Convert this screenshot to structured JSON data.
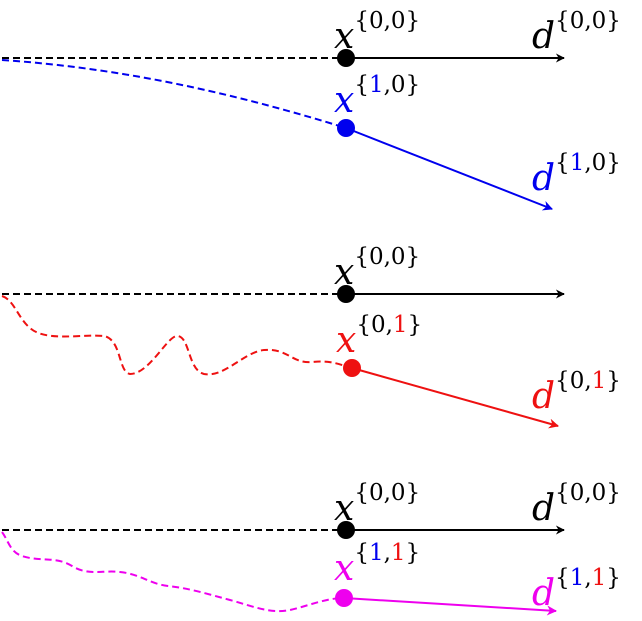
{
  "colors": {
    "black": "#000000",
    "blue": "#0000ee",
    "red": "#ee1111",
    "magenta": "#ee00ee"
  },
  "panels": [
    {
      "id": "panel-1",
      "reference": {
        "point_label": {
          "letter": "x",
          "i": "0",
          "j": "0"
        },
        "direction_label": {
          "letter": "d",
          "i": "0",
          "j": "0"
        }
      },
      "perturbed": {
        "color": "blue",
        "point_label": {
          "letter": "x",
          "i": "1",
          "j": "0",
          "i_color": "blue",
          "j_color": "black"
        },
        "direction_label": {
          "letter": "d",
          "i": "1",
          "j": "0",
          "i_color": "blue",
          "j_color": "black"
        }
      }
    },
    {
      "id": "panel-2",
      "reference": {
        "point_label": {
          "letter": "x",
          "i": "0",
          "j": "0"
        },
        "direction_label": null
      },
      "perturbed": {
        "color": "red",
        "point_label": {
          "letter": "x",
          "i": "0",
          "j": "1",
          "i_color": "black",
          "j_color": "red"
        },
        "direction_label": {
          "letter": "d",
          "i": "0",
          "j": "1",
          "i_color": "black",
          "j_color": "red"
        }
      }
    },
    {
      "id": "panel-3",
      "reference": {
        "point_label": {
          "letter": "x",
          "i": "0",
          "j": "0"
        },
        "direction_label": {
          "letter": "d",
          "i": "0",
          "j": "0"
        }
      },
      "perturbed": {
        "color": "magenta",
        "point_label": {
          "letter": "x",
          "i": "1",
          "j": "1",
          "i_color": "blue",
          "j_color": "red"
        },
        "direction_label": {
          "letter": "d",
          "i": "1",
          "j": "1",
          "i_color": "blue",
          "j_color": "red"
        }
      }
    }
  ]
}
